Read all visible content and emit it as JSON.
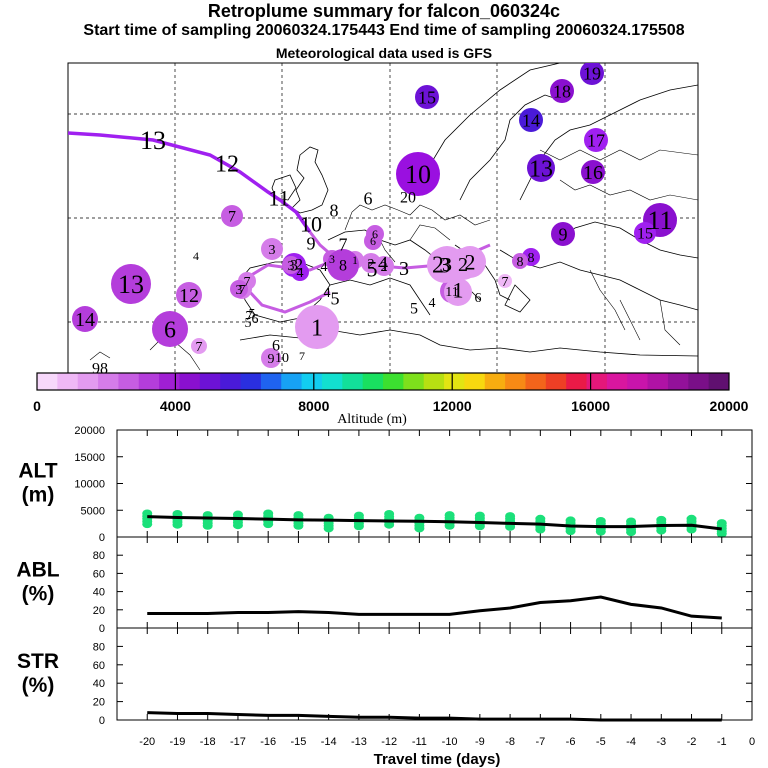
{
  "header": {
    "title": "Retroplume summary for falcon_060324c",
    "sampling": "Start time of sampling 20060324.175443      End time of sampling 20060324.175508",
    "met": "Meteorological data used is GFS"
  },
  "colorbar": {
    "label": "Altitude (m)",
    "ticks": [
      "0",
      "4000",
      "8000",
      "12000",
      "16000",
      "20000"
    ],
    "colors": [
      "#f7d8fb",
      "#efb8f6",
      "#e39bf0",
      "#d57ce9",
      "#c65de2",
      "#b43ddb",
      "#a01fd3",
      "#8a10cf",
      "#6d12d6",
      "#4a1ad8",
      "#2a2fe0",
      "#1f63ef",
      "#17a2f4",
      "#12cdf0",
      "#12e0d0",
      "#12e09a",
      "#19e060",
      "#3ce030",
      "#7ee01c",
      "#b7e012",
      "#e3e412",
      "#f7d80f",
      "#f7ad10",
      "#f78a15",
      "#f3641b",
      "#ee3f25",
      "#ea1a47",
      "#e4177a",
      "#d9169f",
      "#c914ab",
      "#b012a5",
      "#93119a",
      "#7a0f88",
      "#601070"
    ]
  },
  "map_labels": [
    {
      "t": "13",
      "c": "#a020f0"
    },
    {
      "t": "12",
      "c": "#a020f0"
    },
    {
      "t": "11",
      "c": "#a020f0"
    },
    {
      "t": "10",
      "c": "#a020f0"
    },
    {
      "t": "9",
      "c": "#a020f0"
    },
    {
      "t": "8",
      "c": "#a020f0"
    },
    {
      "t": "7",
      "c": "#a020f0"
    },
    {
      "t": "6",
      "c": "#a020f0"
    },
    {
      "t": "5",
      "c": "#a020f0"
    },
    {
      "t": "4",
      "c": "#a020f0"
    },
    {
      "t": "3",
      "c": "#a020f0"
    },
    {
      "t": "2",
      "c": "#a020f0"
    },
    {
      "t": "1",
      "c": "#a020f0"
    },
    {
      "t": "10",
      "c": "#9a10e0"
    },
    {
      "t": "15",
      "c": "#6d12d6"
    },
    {
      "t": "19",
      "c": "#6d12d6"
    },
    {
      "t": "18",
      "c": "#8a10cf"
    },
    {
      "t": "14",
      "c": "#4a1ad8"
    },
    {
      "t": "17",
      "c": "#a020f0"
    },
    {
      "t": "13",
      "c": "#6d12d6"
    },
    {
      "t": "16",
      "c": "#8a10cf"
    },
    {
      "t": "20",
      "c": "#a020f0"
    },
    {
      "t": "11",
      "c": "#8a10cf"
    },
    {
      "t": "15",
      "c": "#a020f0"
    },
    {
      "t": "9",
      "c": "#8a10cf"
    },
    {
      "t": "8",
      "c": "#a020f0"
    },
    {
      "t": "7",
      "c": "#c65de2"
    },
    {
      "t": "6",
      "c": "#c65de2"
    },
    {
      "t": "5",
      "c": "#e39bf0"
    },
    {
      "t": "4",
      "c": "#e39bf0"
    },
    {
      "t": "3",
      "c": "#d57ce9"
    },
    {
      "t": "2",
      "c": "#d57ce9"
    },
    {
      "t": "1",
      "c": "#d57ce9"
    },
    {
      "t": "3",
      "c": "#c65de2"
    },
    {
      "t": "6",
      "c": "#c65de2"
    },
    {
      "t": "12",
      "c": "#c65de2"
    },
    {
      "t": "13",
      "c": "#b43ddb"
    },
    {
      "t": "14",
      "c": "#b43ddb"
    },
    {
      "t": "6",
      "c": "#b43ddb"
    },
    {
      "t": "7",
      "c": "#e39bf0"
    },
    {
      "t": "5",
      "c": "#e39bf0"
    },
    {
      "t": "7",
      "c": "#d57ce9"
    },
    {
      "t": "98",
      "c": "#e39bf0"
    },
    {
      "t": "9",
      "c": "#d57ce9"
    },
    {
      "t": "10",
      "c": "#e39bf0"
    },
    {
      "t": "7",
      "c": "#e39bf0"
    },
    {
      "t": "3",
      "c": "#a020f0"
    },
    {
      "t": "2",
      "c": "#a020f0"
    },
    {
      "t": "4",
      "c": "#a020f0"
    },
    {
      "t": "3",
      "c": "#c65de2"
    },
    {
      "t": "4",
      "c": "#6d12d6"
    },
    {
      "t": "7",
      "c": "#d57ce9"
    },
    {
      "t": "3",
      "c": "#c65de2"
    },
    {
      "t": "11",
      "c": "#c65de2"
    },
    {
      "t": "6",
      "c": "#c65de2"
    },
    {
      "t": "5",
      "c": "#b43ddb"
    },
    {
      "t": "4",
      "c": "#b43ddb"
    },
    {
      "t": "8",
      "c": "#b43ddb"
    },
    {
      "t": "2",
      "c": "#d57ce9"
    },
    {
      "t": "6",
      "c": "#c65de2"
    },
    {
      "t": "1",
      "c": "#e39bf0"
    },
    {
      "t": "4",
      "c": "#efb8f6"
    },
    {
      "t": "5",
      "c": "#e39bf0"
    },
    {
      "t": "7",
      "c": "#efb8f6"
    },
    {
      "t": "3",
      "c": "#e39bf0"
    },
    {
      "t": "2",
      "c": "#e39bf0"
    },
    {
      "t": "8",
      "c": "#c65de2"
    },
    {
      "t": "7",
      "c": "#efb8f6"
    },
    {
      "t": "6",
      "c": "#efb8f6"
    },
    {
      "t": "1",
      "c": "#e39bf0"
    },
    {
      "t": "3",
      "c": "#e39bf0"
    },
    {
      "t": "2",
      "c": "#e39bf0"
    }
  ],
  "chart_data": [
    {
      "type": "scatter",
      "title": "ALT (m)",
      "ylabel": "ALT\n(m)",
      "ylim": [
        0,
        20000
      ],
      "yticks": [
        0,
        5000,
        10000,
        15000,
        20000
      ],
      "x": [
        -20,
        -19,
        -18,
        -17,
        -16,
        -15,
        -14,
        -13,
        -12,
        -11,
        -10,
        -9,
        -8,
        -7,
        -6,
        -5,
        -4,
        -3,
        -2,
        -1
      ],
      "series": [
        {
          "name": "median altitude",
          "values": [
            3800,
            3650,
            3550,
            3450,
            3350,
            3200,
            3150,
            3050,
            3000,
            2950,
            2850,
            2700,
            2550,
            2400,
            2050,
            1950,
            1950,
            2150,
            2200,
            1500
          ]
        },
        {
          "name": "particle altitudes",
          "values": [
            3400,
            3300,
            3100,
            3200,
            3400,
            3100,
            2600,
            3000,
            3300,
            2600,
            3100,
            3000,
            2900,
            2400,
            2100,
            2000,
            1900,
            2200,
            2400,
            1600
          ]
        }
      ],
      "color": "#1be07a"
    },
    {
      "type": "line",
      "title": "ABL (%)",
      "ylabel": "ABL\n(%)",
      "ylim": [
        0,
        100
      ],
      "yticks": [
        0,
        20,
        40,
        60,
        80
      ],
      "x": [
        -20,
        -19,
        -18,
        -17,
        -16,
        -15,
        -14,
        -13,
        -12,
        -11,
        -10,
        -9,
        -8,
        -7,
        -6,
        -5,
        -4,
        -3,
        -2,
        -1
      ],
      "values": [
        16,
        16,
        16,
        17,
        17,
        18,
        17,
        15,
        15,
        15,
        15,
        19,
        22,
        28,
        30,
        34,
        26,
        22,
        13,
        11
      ]
    },
    {
      "type": "line",
      "title": "STR (%)",
      "ylabel": "STR\n(%)",
      "ylim": [
        0,
        100
      ],
      "yticks": [
        0,
        20,
        40,
        60,
        80
      ],
      "x": [
        -20,
        -19,
        -18,
        -17,
        -16,
        -15,
        -14,
        -13,
        -12,
        -11,
        -10,
        -9,
        -8,
        -7,
        -6,
        -5,
        -4,
        -3,
        -2,
        -1
      ],
      "values": [
        8,
        7,
        7,
        6,
        5,
        5,
        4,
        3,
        3,
        2,
        2,
        1,
        1,
        1,
        1,
        0,
        0,
        0,
        0,
        0
      ]
    }
  ],
  "xaxis": {
    "label": "Travel time (days)",
    "ticks": [
      "-20",
      "-19",
      "-18",
      "-17",
      "-16",
      "-15",
      "-14",
      "-13",
      "-12",
      "-11",
      "-10",
      "-9",
      "-8",
      "-7",
      "-6",
      "-5",
      "-4",
      "-3",
      "-2",
      "-1",
      "0"
    ]
  }
}
